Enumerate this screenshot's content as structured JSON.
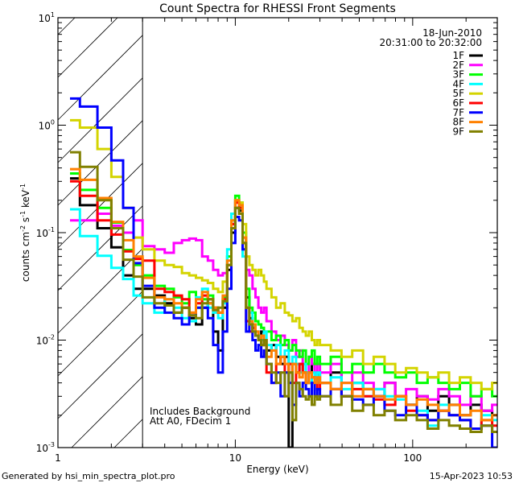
{
  "chart_data": {
    "type": "line",
    "title": "Count Spectra for RHESSI Front Segments",
    "xlabel": "Energy (keV)",
    "ylabel_parts": [
      {
        "text": "counts cm",
        "sup": "-2"
      },
      {
        "text": " s",
        "sup": "-1"
      },
      {
        "text": " keV",
        "sup": "-1"
      }
    ],
    "xscale": "log",
    "yscale": "log",
    "xlim": [
      1,
      300
    ],
    "ylim": [
      0.001,
      10
    ],
    "x_tick_labels": [
      {
        "value": 1,
        "label": "1"
      },
      {
        "value": 10,
        "label": "10"
      },
      {
        "value": 100,
        "label": "100"
      }
    ],
    "y_tick_labels": [
      {
        "value": 10,
        "base": "10",
        "exp": "1"
      },
      {
        "value": 1,
        "base": "10",
        "exp": "0"
      },
      {
        "value": 0.1,
        "base": "10",
        "exp": "-1"
      },
      {
        "value": 0.01,
        "base": "10",
        "exp": "-2"
      },
      {
        "value": 0.001,
        "base": "10",
        "exp": "-3"
      }
    ],
    "hatched_region_keV": [
      1,
      3
    ],
    "legend": {
      "placement": "top-right",
      "date": "18-Jun-2010",
      "time_range": "20:31:00 to 20:32:00"
    },
    "annotations": [
      "Includes Background",
      "Att A0, FDecim 1"
    ],
    "energy_edges": [
      1.17,
      1.33,
      1.67,
      2.0,
      2.33,
      2.67,
      3.0,
      3.5,
      4,
      4.5,
      5,
      5.5,
      6,
      6.5,
      7,
      7.5,
      8,
      8.5,
      9,
      9.5,
      10,
      10.5,
      11,
      11.5,
      12,
      12.5,
      13,
      13.5,
      14,
      14.5,
      15,
      16,
      17,
      18,
      19,
      20,
      21,
      22,
      23,
      24,
      25,
      26,
      27,
      28,
      29,
      30,
      34.5,
      39.7,
      45.6,
      52.5,
      60.3,
      69.4,
      79.8,
      91.8,
      105.5,
      121.4,
      139.6,
      160.5,
      184.6,
      212.3,
      244.1,
      280.7,
      300
    ],
    "series": [
      {
        "name": "1F",
        "color": "#000000",
        "values": [
          0.32,
          0.18,
          0.11,
          0.073,
          0.04,
          0.03,
          0.03,
          0.026,
          0.022,
          0.018,
          0.02,
          0.016,
          0.014,
          0.02,
          0.022,
          0.012,
          0.008,
          0.02,
          0.045,
          0.1,
          0.17,
          0.16,
          0.08,
          0.025,
          0.016,
          0.013,
          0.011,
          0.01,
          0.012,
          0.009,
          0.008,
          0.009,
          0.007,
          0.006,
          0.007,
          0.0008,
          0.006,
          0.005,
          0.006,
          0.005,
          0.004,
          0.005,
          0.006,
          0.004,
          0.005,
          0.004,
          0.005,
          0.003,
          0.004,
          0.0035,
          0.003,
          0.004,
          0.003,
          0.0025,
          0.003,
          0.0022,
          0.003,
          0.0025,
          0.002,
          0.0025,
          0.0022,
          0.002
        ]
      },
      {
        "name": "2F",
        "color": "#ff00ff",
        "values": [
          0.13,
          0.13,
          0.15,
          0.116,
          0.1,
          0.13,
          0.075,
          0.07,
          0.065,
          0.08,
          0.085,
          0.088,
          0.085,
          0.06,
          0.055,
          0.045,
          0.04,
          0.042,
          0.05,
          0.12,
          0.2,
          0.18,
          0.09,
          0.045,
          0.04,
          0.03,
          0.025,
          0.02,
          0.018,
          0.02,
          0.015,
          0.012,
          0.01,
          0.011,
          0.009,
          0.008,
          0.01,
          0.007,
          0.008,
          0.006,
          0.005,
          0.007,
          0.006,
          0.005,
          0.006,
          0.005,
          0.006,
          0.004,
          0.005,
          0.004,
          0.0035,
          0.004,
          0.003,
          0.0035,
          0.003,
          0.0028,
          0.0035,
          0.003,
          0.0025,
          0.003,
          0.0022,
          0.0025
        ]
      },
      {
        "name": "3F",
        "color": "#00ff00",
        "values": [
          0.355,
          0.25,
          0.17,
          0.124,
          0.069,
          0.05,
          0.04,
          0.032,
          0.03,
          0.025,
          0.022,
          0.028,
          0.02,
          0.024,
          0.026,
          0.02,
          0.018,
          0.025,
          0.06,
          0.13,
          0.22,
          0.19,
          0.1,
          0.03,
          0.02,
          0.018,
          0.015,
          0.014,
          0.013,
          0.012,
          0.012,
          0.01,
          0.011,
          0.009,
          0.01,
          0.008,
          0.009,
          0.008,
          0.007,
          0.008,
          0.006,
          0.007,
          0.008,
          0.006,
          0.007,
          0.006,
          0.007,
          0.005,
          0.006,
          0.005,
          0.006,
          0.005,
          0.0045,
          0.005,
          0.004,
          0.0045,
          0.004,
          0.0035,
          0.004,
          0.003,
          0.0035,
          0.003
        ]
      },
      {
        "name": "4F",
        "color": "#00ffff",
        "values": [
          0.165,
          0.093,
          0.061,
          0.047,
          0.037,
          0.026,
          0.022,
          0.018,
          0.024,
          0.02,
          0.016,
          0.015,
          0.025,
          0.03,
          0.02,
          0.018,
          0.016,
          0.022,
          0.07,
          0.15,
          0.2,
          0.17,
          0.06,
          0.02,
          0.018,
          0.014,
          0.012,
          0.011,
          0.01,
          0.012,
          0.009,
          0.008,
          0.009,
          0.007,
          0.008,
          0.006,
          0.007,
          0.006,
          0.005,
          0.006,
          0.005,
          0.004,
          0.005,
          0.004,
          0.005,
          0.004,
          0.0045,
          0.0035,
          0.004,
          0.003,
          0.0035,
          0.003,
          0.0028,
          0.0025,
          0.0022,
          0.0016,
          0.0025,
          0.002,
          0.0018,
          0.0015,
          0.002,
          0.0018
        ]
      },
      {
        "name": "5F",
        "color": "#d4d400",
        "values": [
          1.11,
          0.95,
          0.6,
          0.33,
          0.17,
          0.09,
          0.07,
          0.055,
          0.05,
          0.048,
          0.042,
          0.04,
          0.038,
          0.036,
          0.034,
          0.03,
          0.028,
          0.035,
          0.05,
          0.12,
          0.2,
          0.19,
          0.12,
          0.06,
          0.05,
          0.045,
          0.04,
          0.045,
          0.04,
          0.035,
          0.03,
          0.025,
          0.02,
          0.022,
          0.018,
          0.017,
          0.015,
          0.016,
          0.013,
          0.012,
          0.011,
          0.012,
          0.01,
          0.009,
          0.01,
          0.009,
          0.008,
          0.007,
          0.008,
          0.006,
          0.007,
          0.006,
          0.005,
          0.0055,
          0.005,
          0.0045,
          0.005,
          0.004,
          0.0045,
          0.004,
          0.0035,
          0.004
        ]
      },
      {
        "name": "6F",
        "color": "#ff0000",
        "values": [
          0.3,
          0.22,
          0.13,
          0.096,
          0.067,
          0.057,
          0.055,
          0.03,
          0.028,
          0.026,
          0.024,
          0.018,
          0.022,
          0.026,
          0.024,
          0.02,
          0.018,
          0.024,
          0.05,
          0.12,
          0.19,
          0.17,
          0.08,
          0.015,
          0.012,
          0.013,
          0.011,
          0.01,
          0.009,
          0.01,
          0.005,
          0.004,
          0.006,
          0.007,
          0.005,
          0.006,
          0.004,
          0.005,
          0.006,
          0.005,
          0.004,
          0.005,
          0.0045,
          0.004,
          0.0035,
          0.004,
          0.0035,
          0.003,
          0.0035,
          0.003,
          0.0028,
          0.0025,
          0.003,
          0.0022,
          0.002,
          0.0018,
          0.0022,
          0.002,
          0.0018,
          0.0015,
          0.0018,
          0.0016
        ]
      },
      {
        "name": "7F",
        "color": "#0000ff",
        "values": [
          1.77,
          1.49,
          0.95,
          0.47,
          0.17,
          0.052,
          0.032,
          0.02,
          0.018,
          0.016,
          0.014,
          0.017,
          0.02,
          0.02,
          0.016,
          0.009,
          0.005,
          0.012,
          0.03,
          0.08,
          0.14,
          0.13,
          0.07,
          0.012,
          0.014,
          0.01,
          0.008,
          0.009,
          0.007,
          0.008,
          0.006,
          0.004,
          0.005,
          0.003,
          0.005,
          0.004,
          0.0025,
          0.004,
          0.003,
          0.004,
          0.0035,
          0.003,
          0.004,
          0.003,
          0.0035,
          0.003,
          0.0035,
          0.003,
          0.0028,
          0.0025,
          0.003,
          0.0022,
          0.002,
          0.0025,
          0.002,
          0.0018,
          0.0022,
          0.002,
          0.0018,
          0.0015,
          0.0016,
          0.0009
        ]
      },
      {
        "name": "8F",
        "color": "#ff8000",
        "values": [
          0.39,
          0.31,
          0.21,
          0.126,
          0.085,
          0.06,
          0.038,
          0.025,
          0.024,
          0.022,
          0.02,
          0.018,
          0.024,
          0.028,
          0.022,
          0.02,
          0.018,
          0.026,
          0.055,
          0.13,
          0.2,
          0.18,
          0.09,
          0.02,
          0.015,
          0.014,
          0.012,
          0.01,
          0.011,
          0.01,
          0.007,
          0.008,
          0.006,
          0.007,
          0.006,
          0.005,
          0.006,
          0.005,
          0.0045,
          0.005,
          0.004,
          0.005,
          0.0045,
          0.004,
          0.0045,
          0.004,
          0.0035,
          0.004,
          0.003,
          0.0035,
          0.003,
          0.0028,
          0.003,
          0.0025,
          0.0028,
          0.0025,
          0.0022,
          0.0025,
          0.002,
          0.0022,
          0.0018,
          0.002
        ]
      },
      {
        "name": "9F",
        "color": "#808000",
        "values": [
          0.56,
          0.41,
          0.2,
          0.11,
          0.056,
          0.039,
          0.025,
          0.022,
          0.021,
          0.018,
          0.02,
          0.017,
          0.016,
          0.022,
          0.024,
          0.019,
          0.02,
          0.023,
          0.05,
          0.11,
          0.17,
          0.15,
          0.08,
          0.02,
          0.014,
          0.012,
          0.011,
          0.01,
          0.009,
          0.01,
          0.006,
          0.005,
          0.004,
          0.005,
          0.003,
          0.005,
          0.0018,
          0.004,
          0.0035,
          0.003,
          0.0028,
          0.003,
          0.0025,
          0.003,
          0.0028,
          0.003,
          0.0025,
          0.003,
          0.0022,
          0.0025,
          0.002,
          0.0022,
          0.0018,
          0.002,
          0.0018,
          0.0015,
          0.0018,
          0.0016,
          0.0015,
          0.0014,
          0.0016,
          0.0014
        ]
      }
    ]
  },
  "footer": {
    "generated_by": "Generated by hsi_min_spectra_plot.pro",
    "timestamp": "15-Apr-2023 10:53"
  }
}
